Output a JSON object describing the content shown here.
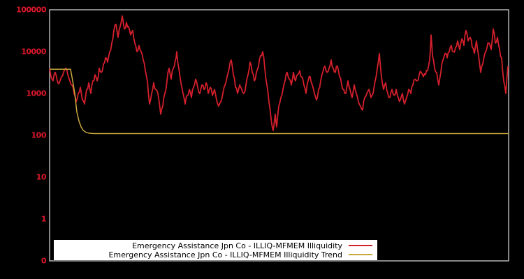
{
  "chart_data": {
    "type": "line",
    "title": "",
    "xlabel": "",
    "ylabel": "",
    "y_axis": {
      "scale": "log",
      "tick_labels": [
        "100000",
        "10000",
        "1000",
        "100",
        "10",
        "1",
        "0"
      ],
      "top_value": 100000,
      "decades_shown": 6
    },
    "x_axis": {
      "tick_labels": []
    },
    "colors": {
      "background": "#000000",
      "plot_border": "#b3b3b3",
      "tick_label": "#e0182b",
      "legend_background": "#ffffff",
      "legend_text": "#000000"
    },
    "legend": {
      "position": "bottom-inside",
      "entries": [
        "Emergency Assistance Jpn Co - ILLIQ-MFMEM Illiquidity",
        "Emergency Assistance Jpn Co - ILLIQ-MFMEM Illiquidity Trend"
      ]
    },
    "noise": {
      "seed": 42,
      "amplitude_decades": 0.07,
      "subdivisions": 1,
      "apply_to_series": [
        0
      ]
    },
    "series": [
      {
        "name": "Emergency Assistance Jpn Co - ILLIQ-MFMEM Illiquidity",
        "color": "#d4202c",
        "width": 1.8,
        "points": [
          [
            0,
            4000
          ],
          [
            2,
            2500
          ],
          [
            5,
            2000
          ],
          [
            8,
            3200
          ],
          [
            11,
            2000
          ],
          [
            14,
            1800
          ],
          [
            17,
            2500
          ],
          [
            20,
            3200
          ],
          [
            23,
            4000
          ],
          [
            26,
            2800
          ],
          [
            29,
            2000
          ],
          [
            32,
            1600
          ],
          [
            35,
            1000
          ],
          [
            38,
            630
          ],
          [
            41,
            1000
          ],
          [
            44,
            1400
          ],
          [
            47,
            700
          ],
          [
            50,
            560
          ],
          [
            53,
            1250
          ],
          [
            56,
            1800
          ],
          [
            59,
            1000
          ],
          [
            62,
            2000
          ],
          [
            65,
            2800
          ],
          [
            68,
            2000
          ],
          [
            71,
            4000
          ],
          [
            74,
            3200
          ],
          [
            77,
            5000
          ],
          [
            80,
            7100
          ],
          [
            83,
            5600
          ],
          [
            86,
            10000
          ],
          [
            89,
            16000
          ],
          [
            92,
            32000
          ],
          [
            95,
            45000
          ],
          [
            98,
            22000
          ],
          [
            101,
            40000
          ],
          [
            104,
            71000
          ],
          [
            107,
            35000
          ],
          [
            110,
            50000
          ],
          [
            113,
            40000
          ],
          [
            116,
            25000
          ],
          [
            119,
            32000
          ],
          [
            122,
            16000
          ],
          [
            125,
            10000
          ],
          [
            128,
            14000
          ],
          [
            131,
            10000
          ],
          [
            134,
            6300
          ],
          [
            137,
            3500
          ],
          [
            140,
            2000
          ],
          [
            143,
            560
          ],
          [
            146,
            1000
          ],
          [
            149,
            1800
          ],
          [
            152,
            1250
          ],
          [
            155,
            1000
          ],
          [
            159,
            320
          ],
          [
            162,
            500
          ],
          [
            165,
            1000
          ],
          [
            168,
            2000
          ],
          [
            171,
            4000
          ],
          [
            174,
            2200
          ],
          [
            177,
            4000
          ],
          [
            180,
            6300
          ],
          [
            182,
            10000
          ],
          [
            185,
            4000
          ],
          [
            188,
            1800
          ],
          [
            191,
            1000
          ],
          [
            194,
            560
          ],
          [
            197,
            900
          ],
          [
            200,
            1250
          ],
          [
            203,
            800
          ],
          [
            206,
            1400
          ],
          [
            209,
            2200
          ],
          [
            212,
            1400
          ],
          [
            215,
            1000
          ],
          [
            218,
            1600
          ],
          [
            221,
            1250
          ],
          [
            224,
            1800
          ],
          [
            227,
            1000
          ],
          [
            230,
            1400
          ],
          [
            233,
            900
          ],
          [
            236,
            1250
          ],
          [
            239,
            700
          ],
          [
            242,
            500
          ],
          [
            245,
            630
          ],
          [
            248,
            1000
          ],
          [
            251,
            1600
          ],
          [
            254,
            2500
          ],
          [
            257,
            4000
          ],
          [
            260,
            6300
          ],
          [
            263,
            2800
          ],
          [
            266,
            1400
          ],
          [
            269,
            1000
          ],
          [
            272,
            1600
          ],
          [
            275,
            1250
          ],
          [
            278,
            1000
          ],
          [
            281,
            1600
          ],
          [
            284,
            2800
          ],
          [
            287,
            5600
          ],
          [
            290,
            3200
          ],
          [
            293,
            2000
          ],
          [
            296,
            3200
          ],
          [
            299,
            4500
          ],
          [
            302,
            8000
          ],
          [
            305,
            10000
          ],
          [
            308,
            4000
          ],
          [
            311,
            1600
          ],
          [
            314,
            630
          ],
          [
            317,
            250
          ],
          [
            320,
            130
          ],
          [
            323,
            320
          ],
          [
            325,
            160
          ],
          [
            328,
            500
          ],
          [
            331,
            800
          ],
          [
            334,
            1250
          ],
          [
            337,
            2000
          ],
          [
            340,
            3200
          ],
          [
            343,
            2200
          ],
          [
            346,
            1600
          ],
          [
            349,
            3200
          ],
          [
            352,
            2000
          ],
          [
            355,
            2800
          ],
          [
            358,
            3500
          ],
          [
            361,
            2500
          ],
          [
            364,
            1600
          ],
          [
            367,
            1000
          ],
          [
            370,
            2000
          ],
          [
            373,
            2500
          ],
          [
            376,
            1600
          ],
          [
            379,
            1000
          ],
          [
            382,
            700
          ],
          [
            385,
            1250
          ],
          [
            388,
            2000
          ],
          [
            391,
            3200
          ],
          [
            394,
            4500
          ],
          [
            397,
            3200
          ],
          [
            400,
            4000
          ],
          [
            403,
            6300
          ],
          [
            406,
            4000
          ],
          [
            409,
            3200
          ],
          [
            412,
            4500
          ],
          [
            415,
            2500
          ],
          [
            418,
            1600
          ],
          [
            421,
            1250
          ],
          [
            424,
            1000
          ],
          [
            427,
            2000
          ],
          [
            430,
            1250
          ],
          [
            433,
            800
          ],
          [
            436,
            1600
          ],
          [
            439,
            1000
          ],
          [
            442,
            630
          ],
          [
            445,
            500
          ],
          [
            448,
            400
          ],
          [
            451,
            800
          ],
          [
            454,
            1000
          ],
          [
            457,
            1250
          ],
          [
            460,
            800
          ],
          [
            463,
            1000
          ],
          [
            466,
            2000
          ],
          [
            469,
            4000
          ],
          [
            472,
            9000
          ],
          [
            475,
            2500
          ],
          [
            478,
            1250
          ],
          [
            481,
            1800
          ],
          [
            484,
            1000
          ],
          [
            487,
            800
          ],
          [
            490,
            1250
          ],
          [
            493,
            900
          ],
          [
            496,
            1250
          ],
          [
            499,
            800
          ],
          [
            502,
            700
          ],
          [
            505,
            1000
          ],
          [
            508,
            560
          ],
          [
            511,
            800
          ],
          [
            514,
            1250
          ],
          [
            517,
            1000
          ],
          [
            520,
            1600
          ],
          [
            523,
            2200
          ],
          [
            526,
            2000
          ],
          [
            529,
            2800
          ],
          [
            532,
            3200
          ],
          [
            535,
            2500
          ],
          [
            538,
            2800
          ],
          [
            541,
            3500
          ],
          [
            544,
            6300
          ],
          [
            546,
            25000
          ],
          [
            548,
            8000
          ],
          [
            551,
            4000
          ],
          [
            554,
            3200
          ],
          [
            557,
            1600
          ],
          [
            560,
            3200
          ],
          [
            563,
            6300
          ],
          [
            566,
            9000
          ],
          [
            569,
            7100
          ],
          [
            572,
            10000
          ],
          [
            575,
            14000
          ],
          [
            578,
            10000
          ],
          [
            581,
            12500
          ],
          [
            584,
            18000
          ],
          [
            587,
            11200
          ],
          [
            590,
            20000
          ],
          [
            593,
            14000
          ],
          [
            596,
            32000
          ],
          [
            599,
            18000
          ],
          [
            602,
            22000
          ],
          [
            605,
            12500
          ],
          [
            608,
            9000
          ],
          [
            611,
            18000
          ],
          [
            614,
            8000
          ],
          [
            617,
            3200
          ],
          [
            620,
            5000
          ],
          [
            623,
            9000
          ],
          [
            626,
            12500
          ],
          [
            629,
            16000
          ],
          [
            632,
            11200
          ],
          [
            635,
            35000
          ],
          [
            638,
            16000
          ],
          [
            641,
            22000
          ],
          [
            644,
            11200
          ],
          [
            647,
            7100
          ],
          [
            650,
            2000
          ],
          [
            653,
            1000
          ],
          [
            656,
            4500
          ]
        ]
      },
      {
        "name": "Emergency Assistance Jpn Co - ILLIQ-MFMEM Illiquidity Trend",
        "color": "#c9a83c",
        "width": 1.5,
        "points": [
          [
            0,
            3800
          ],
          [
            30,
            3800
          ],
          [
            33,
            2000
          ],
          [
            36,
            1000
          ],
          [
            39,
            360
          ],
          [
            42,
            220
          ],
          [
            45,
            160
          ],
          [
            48,
            132
          ],
          [
            52,
            118
          ],
          [
            57,
            112
          ],
          [
            64,
            110
          ],
          [
            657,
            110
          ]
        ]
      }
    ]
  }
}
